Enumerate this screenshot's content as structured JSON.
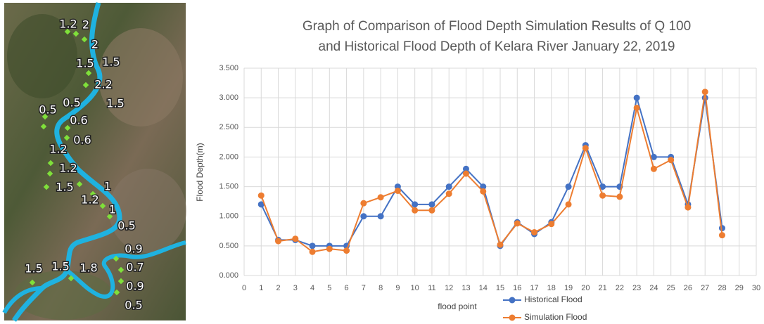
{
  "map_labels": [
    "1.2",
    "2",
    "2",
    "1.5",
    "1.5",
    "2.2",
    "0.5",
    "0.5",
    "1.5",
    "0.6",
    "0.6",
    "1.2",
    "1.2",
    "1.5",
    "1",
    "1.2",
    "1",
    "0.5",
    "0.9",
    "0.7",
    "0.9",
    "0.5",
    "1.5",
    "1.5",
    "1.8"
  ],
  "chart_data": {
    "type": "line",
    "title": [
      "Graph of Comparison of Flood Depth Simulation Results of Q 100",
      "and Historical Flood Depth of Kelara River January 22, 2019"
    ],
    "x_label": "flood point",
    "y_label": "Flood Depth(m)",
    "x": [
      1,
      2,
      3,
      4,
      5,
      6,
      7,
      8,
      9,
      10,
      11,
      12,
      13,
      14,
      15,
      16,
      17,
      18,
      19,
      20,
      21,
      22,
      23,
      24,
      25,
      26,
      27,
      28
    ],
    "series": [
      {
        "name": "Historical Flood",
        "color": "#4472c4",
        "values": [
          1.2,
          0.6,
          0.6,
          0.5,
          0.5,
          0.5,
          1.0,
          1.0,
          1.5,
          1.2,
          1.2,
          1.5,
          1.8,
          1.5,
          0.5,
          0.9,
          0.7,
          0.9,
          1.5,
          2.2,
          1.5,
          1.5,
          3.0,
          2.0,
          2.0,
          1.2,
          3.0,
          0.8
        ]
      },
      {
        "name": "Simulation Flood",
        "color": "#ed7d31",
        "values": [
          1.35,
          0.58,
          0.62,
          0.4,
          0.45,
          0.42,
          1.22,
          1.32,
          1.43,
          1.1,
          1.1,
          1.38,
          1.72,
          1.42,
          0.52,
          0.88,
          0.73,
          0.87,
          1.2,
          2.15,
          1.35,
          1.33,
          2.83,
          1.8,
          1.95,
          1.15,
          3.1,
          0.68
        ]
      }
    ],
    "xlim": [
      0,
      30
    ],
    "xticks": [
      0,
      1,
      2,
      3,
      4,
      5,
      6,
      7,
      8,
      9,
      10,
      11,
      12,
      13,
      14,
      15,
      16,
      17,
      18,
      19,
      20,
      21,
      22,
      23,
      24,
      25,
      26,
      27,
      28,
      29,
      30
    ],
    "ylim": [
      0,
      3.5
    ],
    "yticks": [
      {
        "value": 0,
        "label": "0.000"
      },
      {
        "value": 0.5,
        "label": "0.500"
      },
      {
        "value": 1,
        "label": "1.000"
      },
      {
        "value": 1.5,
        "label": "1.500"
      },
      {
        "value": 2,
        "label": "2.000"
      },
      {
        "value": 2.5,
        "label": "2.500"
      },
      {
        "value": 3,
        "label": "3.000"
      },
      {
        "value": 3.5,
        "label": "3.500"
      }
    ],
    "grid": true,
    "legend": "bottom"
  }
}
